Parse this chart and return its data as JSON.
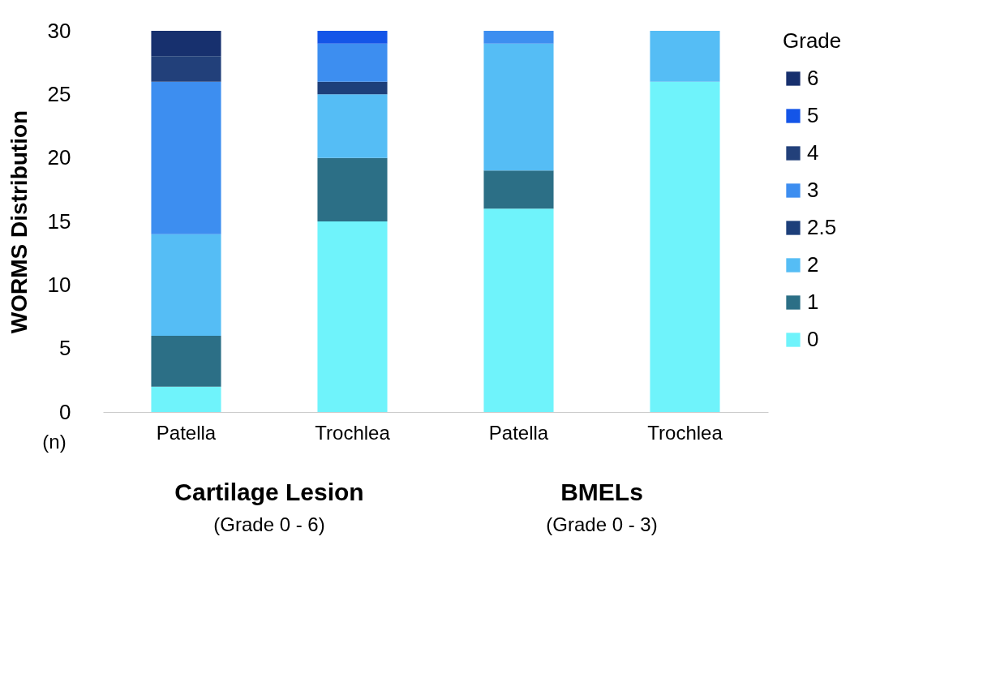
{
  "chart_data": {
    "type": "bar",
    "stacked": true,
    "ylabel": "WORMS Distribution",
    "legend_title": "Grade",
    "legend": "right",
    "grid": false,
    "categories": [
      "Patella",
      "Trochlea",
      "Patella",
      "Trochlea"
    ],
    "ylim": [
      0,
      30
    ],
    "yticks": [
      0,
      5,
      10,
      15,
      20,
      25,
      30
    ],
    "annotations": [
      "(n)",
      "Cartilage Lesion",
      "(Grade 0 - 6)",
      "BMELs",
      "(Grade 0 - 3)"
    ],
    "series": [
      {
        "name": "0",
        "color": "#6ff3fb",
        "values": [
          2,
          15,
          16,
          26
        ]
      },
      {
        "name": "1",
        "color": "#2c6f86",
        "values": [
          4,
          5,
          3,
          null
        ]
      },
      {
        "name": "2",
        "color": "#55bdf5",
        "values": [
          8,
          5,
          10,
          4
        ]
      },
      {
        "name": "2.5",
        "color": "#1d3f7a",
        "values": [
          null,
          1,
          null,
          null
        ]
      },
      {
        "name": "3",
        "color": "#3d8ef0",
        "values": [
          12,
          3,
          1,
          null
        ]
      },
      {
        "name": "4",
        "color": "#22407a",
        "values": [
          2,
          null,
          null,
          null
        ]
      },
      {
        "name": "5",
        "color": "#1455e8",
        "values": [
          null,
          1,
          null,
          null
        ]
      },
      {
        "name": "6",
        "color": "#17306e",
        "values": [
          2,
          null,
          null,
          null
        ]
      }
    ]
  }
}
